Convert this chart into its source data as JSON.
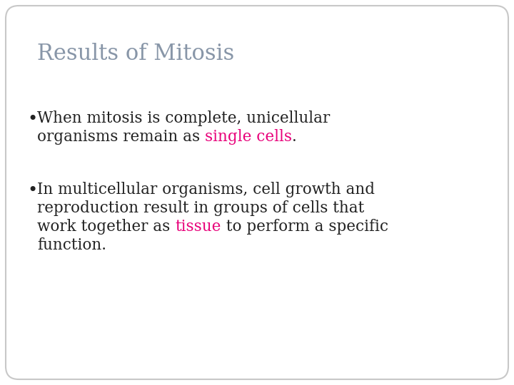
{
  "title": "Results of Mitosis",
  "title_color": "#8896a8",
  "title_fontsize": 22,
  "background_color": "#ffffff",
  "border_color": "#c8c8c8",
  "body_text_color": "#222222",
  "body_fontsize": 15.5,
  "highlight_color_pink": "#e8007a",
  "bullet1_line1": "When mitosis is complete, unicellular",
  "bullet1_line2_pre": "organisms remain as ",
  "bullet1_line2_highlight": "single cells",
  "bullet1_line2_post": ".",
  "bullet2_line1": "In multicellular organisms, cell growth and",
  "bullet2_line2": "reproduction result in groups of cells that",
  "bullet2_line3_pre": "work together as ",
  "bullet2_line3_highlight": "tissue",
  "bullet2_line3_post": " to perform a specific",
  "bullet2_line4": "function."
}
